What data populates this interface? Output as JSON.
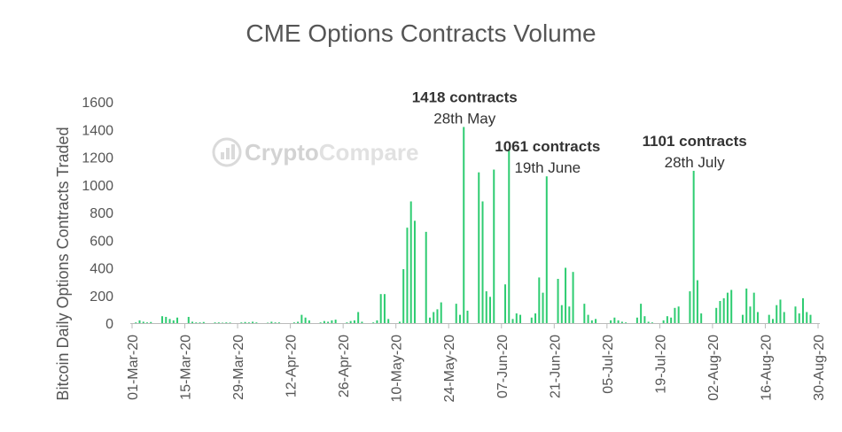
{
  "chart_data": {
    "type": "bar",
    "title": "CME Options Contracts Volume",
    "ylabel": "Bitcoin Daily Options Contracts Traded",
    "xlabel": "",
    "ylim": [
      0,
      1600
    ],
    "yticks": [
      0,
      200,
      400,
      600,
      800,
      1000,
      1200,
      1400,
      1600
    ],
    "x_start": "01-Mar-20",
    "x_end": "30-Aug-20",
    "xtick_labels": [
      "01-Mar-20",
      "15-Mar-20",
      "29-Mar-20",
      "12-Apr-20",
      "26-Apr-20",
      "10-May-20",
      "24-May-20",
      "07-Jun-20",
      "21-Jun-20",
      "05-Jul-20",
      "19-Jul-20",
      "02-Aug-20",
      "16-Aug-20",
      "30-Aug-20"
    ],
    "bar_color": "#2ecc71",
    "grid": false,
    "watermark": {
      "prefix": "Crypto",
      "suffix": "Compare"
    },
    "points": [
      [
        "02-Mar-20",
        5
      ],
      [
        "03-Mar-20",
        20
      ],
      [
        "04-Mar-20",
        10
      ],
      [
        "05-Mar-20",
        5
      ],
      [
        "06-Mar-20",
        8
      ],
      [
        "09-Mar-20",
        50
      ],
      [
        "10-Mar-20",
        45
      ],
      [
        "11-Mar-20",
        30
      ],
      [
        "12-Mar-20",
        20
      ],
      [
        "13-Mar-20",
        40
      ],
      [
        "16-Mar-20",
        45
      ],
      [
        "17-Mar-20",
        10
      ],
      [
        "18-Mar-20",
        5
      ],
      [
        "19-Mar-20",
        5
      ],
      [
        "20-Mar-20",
        8
      ],
      [
        "23-Mar-20",
        5
      ],
      [
        "24-Mar-20",
        5
      ],
      [
        "25-Mar-20",
        3
      ],
      [
        "26-Mar-20",
        5
      ],
      [
        "27-Mar-20",
        4
      ],
      [
        "30-Mar-20",
        5
      ],
      [
        "31-Mar-20",
        8
      ],
      [
        "01-Apr-20",
        5
      ],
      [
        "02-Apr-20",
        10
      ],
      [
        "03-Apr-20",
        5
      ],
      [
        "06-Apr-20",
        3
      ],
      [
        "07-Apr-20",
        10
      ],
      [
        "08-Apr-20",
        5
      ],
      [
        "09-Apr-20",
        5
      ],
      [
        "13-Apr-20",
        5
      ],
      [
        "14-Apr-20",
        10
      ],
      [
        "15-Apr-20",
        60
      ],
      [
        "16-Apr-20",
        40
      ],
      [
        "17-Apr-20",
        20
      ],
      [
        "20-Apr-20",
        5
      ],
      [
        "21-Apr-20",
        15
      ],
      [
        "22-Apr-20",
        10
      ],
      [
        "23-Apr-20",
        20
      ],
      [
        "24-Apr-20",
        25
      ],
      [
        "27-Apr-20",
        5
      ],
      [
        "28-Apr-20",
        15
      ],
      [
        "29-Apr-20",
        20
      ],
      [
        "30-Apr-20",
        80
      ],
      [
        "01-May-20",
        10
      ],
      [
        "04-May-20",
        5
      ],
      [
        "05-May-20",
        20
      ],
      [
        "06-May-20",
        210
      ],
      [
        "07-May-20",
        210
      ],
      [
        "08-May-20",
        30
      ],
      [
        "11-May-20",
        10
      ],
      [
        "12-May-20",
        390
      ],
      [
        "13-May-20",
        690
      ],
      [
        "14-May-20",
        880
      ],
      [
        "15-May-20",
        740
      ],
      [
        "18-May-20",
        660
      ],
      [
        "19-May-20",
        40
      ],
      [
        "20-May-20",
        80
      ],
      [
        "21-May-20",
        100
      ],
      [
        "22-May-20",
        150
      ],
      [
        "26-May-20",
        140
      ],
      [
        "27-May-20",
        60
      ],
      [
        "28-May-20",
        1418
      ],
      [
        "29-May-20",
        90
      ],
      [
        "01-Jun-20",
        1090
      ],
      [
        "02-Jun-20",
        880
      ],
      [
        "03-Jun-20",
        230
      ],
      [
        "04-Jun-20",
        190
      ],
      [
        "05-Jun-20",
        1110
      ],
      [
        "08-Jun-20",
        280
      ],
      [
        "09-Jun-20",
        1260
      ],
      [
        "10-Jun-20",
        30
      ],
      [
        "11-Jun-20",
        70
      ],
      [
        "12-Jun-20",
        60
      ],
      [
        "15-Jun-20",
        40
      ],
      [
        "16-Jun-20",
        70
      ],
      [
        "17-Jun-20",
        330
      ],
      [
        "18-Jun-20",
        220
      ],
      [
        "19-Jun-20",
        1061
      ],
      [
        "22-Jun-20",
        320
      ],
      [
        "23-Jun-20",
        130
      ],
      [
        "24-Jun-20",
        400
      ],
      [
        "25-Jun-20",
        120
      ],
      [
        "26-Jun-20",
        370
      ],
      [
        "29-Jun-20",
        140
      ],
      [
        "30-Jun-20",
        60
      ],
      [
        "01-Jul-20",
        20
      ],
      [
        "02-Jul-20",
        30
      ],
      [
        "06-Jul-20",
        20
      ],
      [
        "07-Jul-20",
        40
      ],
      [
        "08-Jul-20",
        20
      ],
      [
        "09-Jul-20",
        10
      ],
      [
        "10-Jul-20",
        5
      ],
      [
        "13-Jul-20",
        40
      ],
      [
        "14-Jul-20",
        140
      ],
      [
        "15-Jul-20",
        50
      ],
      [
        "16-Jul-20",
        10
      ],
      [
        "17-Jul-20",
        5
      ],
      [
        "20-Jul-20",
        20
      ],
      [
        "21-Jul-20",
        50
      ],
      [
        "22-Jul-20",
        40
      ],
      [
        "23-Jul-20",
        110
      ],
      [
        "24-Jul-20",
        120
      ],
      [
        "27-Jul-20",
        230
      ],
      [
        "28-Jul-20",
        1101
      ],
      [
        "29-Jul-20",
        310
      ],
      [
        "30-Jul-20",
        70
      ],
      [
        "03-Aug-20",
        110
      ],
      [
        "04-Aug-20",
        160
      ],
      [
        "05-Aug-20",
        180
      ],
      [
        "06-Aug-20",
        220
      ],
      [
        "07-Aug-20",
        240
      ],
      [
        "10-Aug-20",
        60
      ],
      [
        "11-Aug-20",
        250
      ],
      [
        "12-Aug-20",
        120
      ],
      [
        "13-Aug-20",
        220
      ],
      [
        "14-Aug-20",
        80
      ],
      [
        "17-Aug-20",
        60
      ],
      [
        "18-Aug-20",
        30
      ],
      [
        "19-Aug-20",
        130
      ],
      [
        "20-Aug-20",
        170
      ],
      [
        "21-Aug-20",
        80
      ],
      [
        "24-Aug-20",
        120
      ],
      [
        "25-Aug-20",
        70
      ],
      [
        "26-Aug-20",
        180
      ],
      [
        "27-Aug-20",
        80
      ],
      [
        "28-Aug-20",
        60
      ]
    ],
    "annotations": [
      {
        "x": "28-May-20",
        "bold": "1418 contracts",
        "text": "28th May"
      },
      {
        "x": "19-Jun-20",
        "bold": "1061 contracts",
        "text": "19th June"
      },
      {
        "x": "28-Jul-20",
        "bold": "1101 contracts",
        "text": "28th July"
      }
    ]
  }
}
